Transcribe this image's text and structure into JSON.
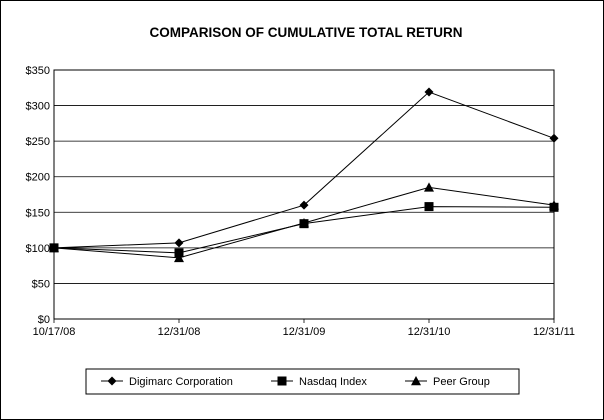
{
  "chart_data": {
    "type": "line",
    "title": "COMPARISON OF CUMULATIVE TOTAL RETURN",
    "xlabel": "",
    "ylabel": "",
    "categories": [
      "10/17/08",
      "12/31/08",
      "12/31/09",
      "12/31/10",
      "12/31/11"
    ],
    "ylim": [
      0,
      350
    ],
    "yticks": [
      0,
      50,
      100,
      150,
      200,
      250,
      300,
      350
    ],
    "ytick_labels": [
      "$0",
      "$50",
      "$100",
      "$150",
      "$200",
      "$250",
      "$300",
      "$350"
    ],
    "grid": "horizontal",
    "legend_position": "bottom",
    "series": [
      {
        "name": "Digimarc Corporation",
        "marker": "diamond",
        "color": "#000000",
        "values": [
          100,
          107,
          160,
          319,
          254
        ]
      },
      {
        "name": "Nasdaq Index",
        "marker": "square",
        "color": "#000000",
        "values": [
          100,
          93,
          134,
          158,
          157
        ]
      },
      {
        "name": "Peer Group",
        "marker": "triangle",
        "color": "#000000",
        "values": [
          100,
          86,
          135,
          185,
          160
        ]
      }
    ]
  }
}
